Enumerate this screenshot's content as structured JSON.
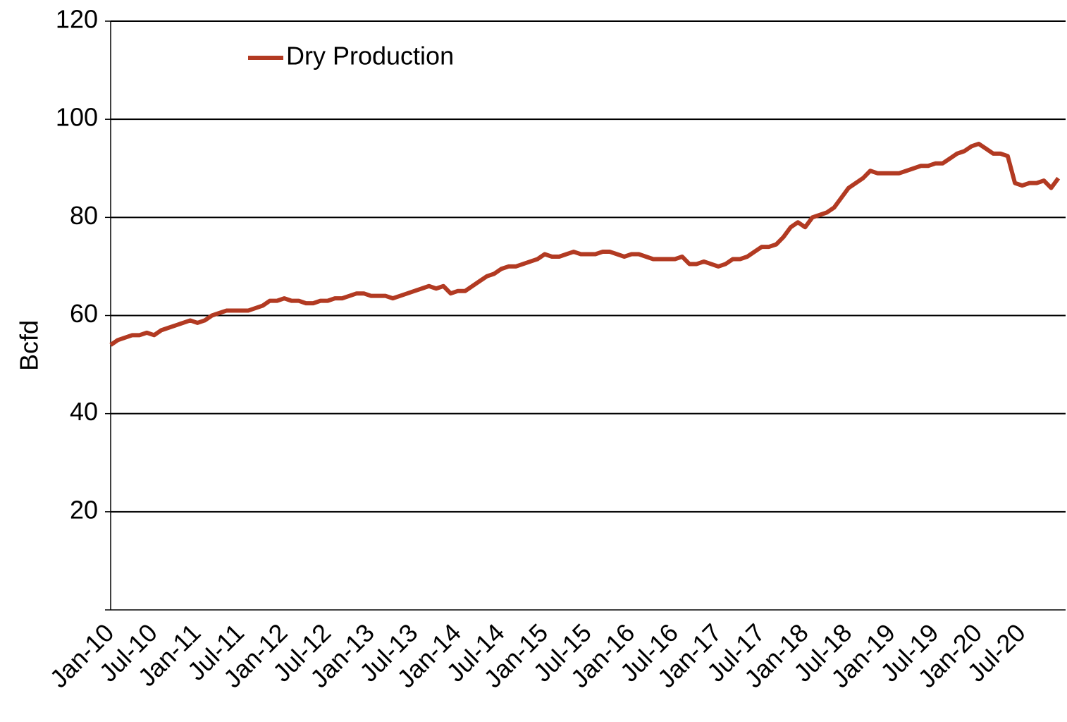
{
  "chart_data": {
    "type": "line",
    "y_axis_label": "Bcfd",
    "categories": [
      "Jan-10",
      null,
      null,
      null,
      null,
      null,
      "Jul-10",
      null,
      null,
      null,
      null,
      null,
      "Jan-11",
      null,
      null,
      null,
      null,
      null,
      "Jul-11",
      null,
      null,
      null,
      null,
      null,
      "Jan-12",
      null,
      null,
      null,
      null,
      null,
      "Jul-12",
      null,
      null,
      null,
      null,
      null,
      "Jan-13",
      null,
      null,
      null,
      null,
      null,
      "Jul-13",
      null,
      null,
      null,
      null,
      null,
      "Jan-14",
      null,
      null,
      null,
      null,
      null,
      "Jul-14",
      null,
      null,
      null,
      null,
      null,
      "Jan-15",
      null,
      null,
      null,
      null,
      null,
      "Jul-15",
      null,
      null,
      null,
      null,
      null,
      "Jan-16",
      null,
      null,
      null,
      null,
      null,
      "Jul-16",
      null,
      null,
      null,
      null,
      null,
      "Jan-17",
      null,
      null,
      null,
      null,
      null,
      "Jul-17",
      null,
      null,
      null,
      null,
      null,
      "Jan-18",
      null,
      null,
      null,
      null,
      null,
      "Jul-18",
      null,
      null,
      null,
      null,
      null,
      "Jan-19",
      null,
      null,
      null,
      null,
      null,
      "Jul-19",
      null,
      null,
      null,
      null,
      null,
      "Jan-20",
      null,
      null,
      null,
      null,
      null,
      "Jul-20",
      null,
      null,
      null,
      null,
      null
    ],
    "series": [
      {
        "name": "Dry Production",
        "color": "#b23a22",
        "values": [
          54,
          55,
          55.5,
          56,
          56,
          56.5,
          56,
          57,
          57.5,
          58,
          58.5,
          59,
          58.5,
          59,
          60,
          60.5,
          61,
          61,
          61,
          61,
          61.5,
          62,
          63,
          63,
          63.5,
          63,
          63,
          62.5,
          62.5,
          63,
          63,
          63.5,
          63.5,
          64,
          64.5,
          64.5,
          64,
          64,
          64,
          63.5,
          64,
          64.5,
          65,
          65.5,
          66,
          65.5,
          66,
          64.5,
          65,
          65,
          66,
          67,
          68,
          68.5,
          69.5,
          70,
          70,
          70.5,
          71,
          71.5,
          72.5,
          72,
          72,
          72.5,
          73,
          72.5,
          72.5,
          72.5,
          73,
          73,
          72.5,
          72,
          72.5,
          72.5,
          72,
          71.5,
          71.5,
          71.5,
          71.5,
          72,
          70.5,
          70.5,
          71,
          70.5,
          70,
          70.5,
          71.5,
          71.5,
          72,
          73,
          74,
          74,
          74.5,
          76,
          78,
          79,
          78,
          80,
          80.5,
          81,
          82,
          84,
          86,
          87,
          88,
          89.5,
          89,
          89,
          89,
          89,
          89.5,
          90,
          90.5,
          90.5,
          91,
          91,
          92,
          93,
          93.5,
          94.5,
          95,
          94,
          93,
          93,
          92.5,
          87,
          86.5,
          87,
          87,
          87.5,
          86,
          88
        ]
      }
    ],
    "ylim": [
      0,
      120
    ],
    "yticks": [
      20,
      40,
      60,
      80,
      100,
      120
    ],
    "grid": true,
    "legend": "top-left"
  }
}
